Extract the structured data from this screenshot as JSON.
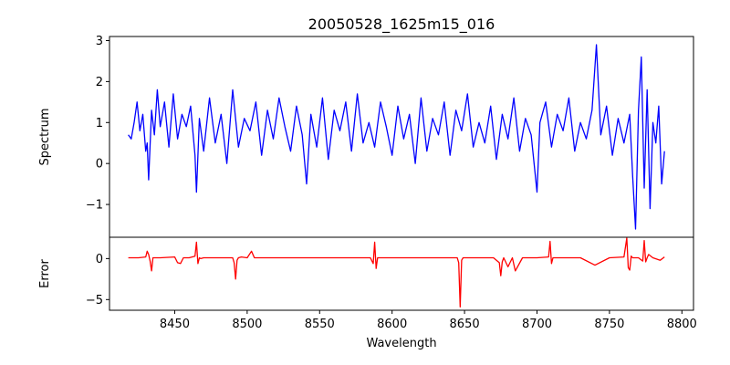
{
  "chart_data": [
    {
      "type": "line",
      "title": "20050528_1625m15_016",
      "xlabel": "",
      "ylabel": "Spectrum",
      "xlim": [
        8405,
        8808
      ],
      "ylim": [
        -1.8,
        3.1
      ],
      "yticks": [
        -1,
        0,
        1,
        2,
        3
      ],
      "grid": false,
      "series": [
        {
          "color": "#0000ff",
          "x": [
            8418,
            8420,
            8422,
            8424,
            8426,
            8428,
            8430,
            8431,
            8432,
            8434,
            8436,
            8438,
            8440,
            8443,
            8446,
            8449,
            8452,
            8455,
            8458,
            8461,
            8464,
            8465,
            8467,
            8470,
            8474,
            8478,
            8482,
            8486,
            8490,
            8494,
            8498,
            8502,
            8506,
            8510,
            8514,
            8518,
            8522,
            8526,
            8530,
            8534,
            8538,
            8541,
            8544,
            8548,
            8552,
            8556,
            8560,
            8564,
            8568,
            8572,
            8576,
            8580,
            8584,
            8588,
            8592,
            8596,
            8600,
            8604,
            8608,
            8612,
            8616,
            8620,
            8624,
            8628,
            8632,
            8636,
            8640,
            8644,
            8648,
            8652,
            8656,
            8660,
            8664,
            8668,
            8672,
            8676,
            8680,
            8684,
            8688,
            8692,
            8696,
            8700,
            8702,
            8706,
            8710,
            8714,
            8718,
            8722,
            8726,
            8730,
            8734,
            8738,
            8741,
            8744,
            8748,
            8752,
            8756,
            8760,
            8764,
            8766,
            8768,
            8770,
            8772,
            8774,
            8776,
            8778,
            8780,
            8782,
            8784,
            8786,
            8788
          ],
          "values": [
            0.7,
            0.6,
            1.0,
            1.5,
            0.8,
            1.2,
            0.3,
            0.5,
            -0.4,
            1.3,
            0.7,
            1.8,
            0.9,
            1.5,
            0.4,
            1.7,
            0.6,
            1.2,
            0.9,
            1.4,
            0.2,
            -0.7,
            1.1,
            0.3,
            1.6,
            0.5,
            1.2,
            0.0,
            1.8,
            0.4,
            1.1,
            0.8,
            1.5,
            0.2,
            1.3,
            0.6,
            1.6,
            0.9,
            0.3,
            1.4,
            0.7,
            -0.5,
            1.2,
            0.4,
            1.6,
            0.1,
            1.3,
            0.8,
            1.5,
            0.3,
            1.7,
            0.5,
            1.0,
            0.4,
            1.5,
            0.9,
            0.2,
            1.4,
            0.6,
            1.2,
            0.0,
            1.6,
            0.3,
            1.1,
            0.7,
            1.5,
            0.2,
            1.3,
            0.8,
            1.7,
            0.4,
            1.0,
            0.5,
            1.4,
            0.1,
            1.2,
            0.6,
            1.6,
            0.3,
            1.1,
            0.7,
            -0.7,
            1.0,
            1.5,
            0.4,
            1.2,
            0.8,
            1.6,
            0.3,
            1.0,
            0.6,
            1.3,
            2.9,
            0.7,
            1.4,
            0.2,
            1.1,
            0.5,
            1.2,
            -0.3,
            -1.6,
            1.3,
            2.6,
            -0.6,
            1.8,
            -1.1,
            1.0,
            0.5,
            1.4,
            -0.5,
            0.3
          ]
        }
      ]
    },
    {
      "type": "line",
      "title": "",
      "xlabel": "Wavelength",
      "ylabel": "Error",
      "xlim": [
        8405,
        8808
      ],
      "ylim": [
        -6.3,
        2.6
      ],
      "xticks": [
        8450,
        8500,
        8550,
        8600,
        8650,
        8700,
        8750,
        8800
      ],
      "yticks": [
        -5,
        0
      ],
      "grid": false,
      "series": [
        {
          "color": "#ff0000",
          "x": [
            8418,
            8425,
            8430,
            8431,
            8432,
            8433,
            8434,
            8435,
            8440,
            8450,
            8452,
            8454,
            8456,
            8460,
            8464,
            8465,
            8466,
            8467,
            8468,
            8470,
            8480,
            8490,
            8491,
            8492,
            8493,
            8494,
            8496,
            8500,
            8503,
            8505,
            8507,
            8510,
            8530,
            8550,
            8570,
            8585,
            8587,
            8588,
            8589,
            8590,
            8595,
            8610,
            8630,
            8645,
            8646,
            8647,
            8648,
            8649,
            8650,
            8670,
            8674,
            8675,
            8676,
            8677,
            8680,
            8683,
            8685,
            8690,
            8700,
            8708,
            8709,
            8710,
            8711,
            8712,
            8720,
            8730,
            8740,
            8750,
            8760,
            8762,
            8763,
            8764,
            8765,
            8766,
            8770,
            8773,
            8774,
            8775,
            8776,
            8777,
            8780,
            8785,
            8788
          ],
          "values": [
            0.1,
            0.1,
            0.2,
            0.9,
            0.5,
            -0.3,
            -1.5,
            0.1,
            0.1,
            0.2,
            -0.5,
            -0.6,
            0.1,
            0.1,
            0.3,
            2.0,
            -0.6,
            0.1,
            0.0,
            0.1,
            0.1,
            0.1,
            -0.5,
            -2.5,
            -0.2,
            0.1,
            0.2,
            0.1,
            0.9,
            0.1,
            0.1,
            0.1,
            0.1,
            0.1,
            0.1,
            0.1,
            -0.6,
            2.0,
            -1.2,
            0.1,
            0.1,
            0.1,
            0.1,
            0.1,
            -0.5,
            -5.9,
            -0.2,
            0.1,
            0.1,
            0.1,
            -0.5,
            -2.1,
            -0.4,
            0.1,
            -1.0,
            0.1,
            -1.5,
            0.1,
            0.1,
            0.2,
            2.1,
            -0.6,
            0.1,
            0.1,
            0.1,
            0.1,
            -0.8,
            0.1,
            0.2,
            2.5,
            -1.1,
            -1.4,
            0.3,
            0.1,
            0.1,
            -0.3,
            2.2,
            -0.4,
            0.1,
            0.5,
            0.1,
            -0.2,
            0.2
          ]
        }
      ]
    }
  ]
}
